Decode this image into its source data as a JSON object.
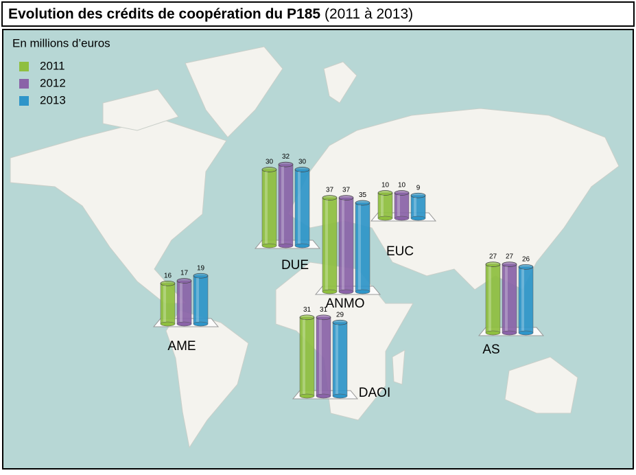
{
  "chart_data": {
    "type": "bar",
    "title": "Evolution des crédits de coopération du P185",
    "subtitle": "(2011 à 2013)",
    "unit_label": "En millions d’euros",
    "categories": [
      "DUE",
      "ANMO",
      "EUC",
      "AME",
      "AS",
      "DAOI"
    ],
    "series": [
      {
        "name": "2011",
        "color": "#8fbf3f",
        "values": [
          30,
          37,
          10,
          16,
          27,
          31
        ]
      },
      {
        "name": "2012",
        "color": "#8a63a8",
        "values": [
          32,
          37,
          10,
          17,
          27,
          31
        ]
      },
      {
        "name": "2013",
        "color": "#2e95c9",
        "values": [
          30,
          35,
          9,
          19,
          26,
          29
        ]
      }
    ]
  }
}
